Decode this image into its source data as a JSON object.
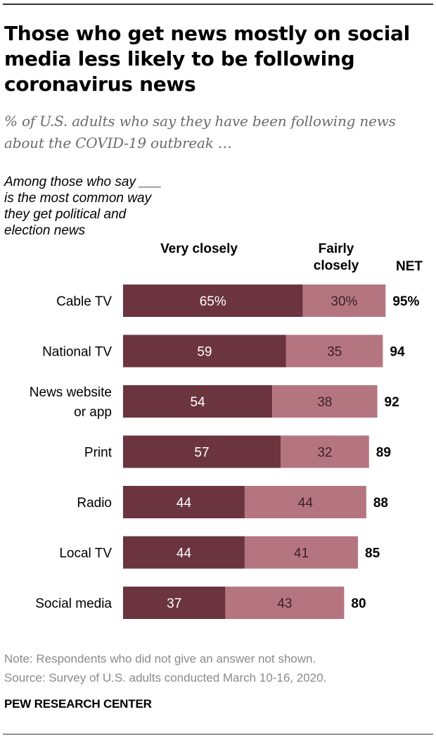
{
  "title": "Those who get news mostly on social media less likely to be following coronavirus news",
  "subtitle": "% of U.S. adults who say they have been following news about the COVID-19 outbreak …",
  "row_header": "Among those who say ___ is the most common way they get political and election news",
  "column_headers": {
    "very": "Very closely",
    "fairly": "Fairly closely",
    "net": "NET"
  },
  "colors": {
    "very": "#6b343f",
    "fairly": "#b57580",
    "very_text": "#ffffff",
    "fairly_text": "#3a2226"
  },
  "chart_data": {
    "type": "bar",
    "orientation": "horizontal",
    "stacked": true,
    "categories": [
      "Cable TV",
      "National TV",
      "News website or app",
      "Print",
      "Radio",
      "Local TV",
      "Social media"
    ],
    "category_lines": [
      [
        "Cable TV"
      ],
      [
        "National TV"
      ],
      [
        "News website",
        "or app"
      ],
      [
        "Print"
      ],
      [
        "Radio"
      ],
      [
        "Local TV"
      ],
      [
        "Social media"
      ]
    ],
    "series": [
      {
        "name": "Very closely",
        "values": [
          65,
          59,
          54,
          57,
          44,
          44,
          37
        ]
      },
      {
        "name": "Fairly closely",
        "values": [
          30,
          35,
          38,
          32,
          44,
          41,
          43
        ]
      }
    ],
    "net": [
      95,
      94,
      92,
      89,
      88,
      85,
      80
    ],
    "first_row_suffix": "%",
    "xlim": [
      0,
      100
    ]
  },
  "note": "Note: Respondents who did not give an answer not shown.",
  "source": "Source: Survey of U.S. adults conducted March 10-16, 2020.",
  "brand": "PEW RESEARCH CENTER"
}
